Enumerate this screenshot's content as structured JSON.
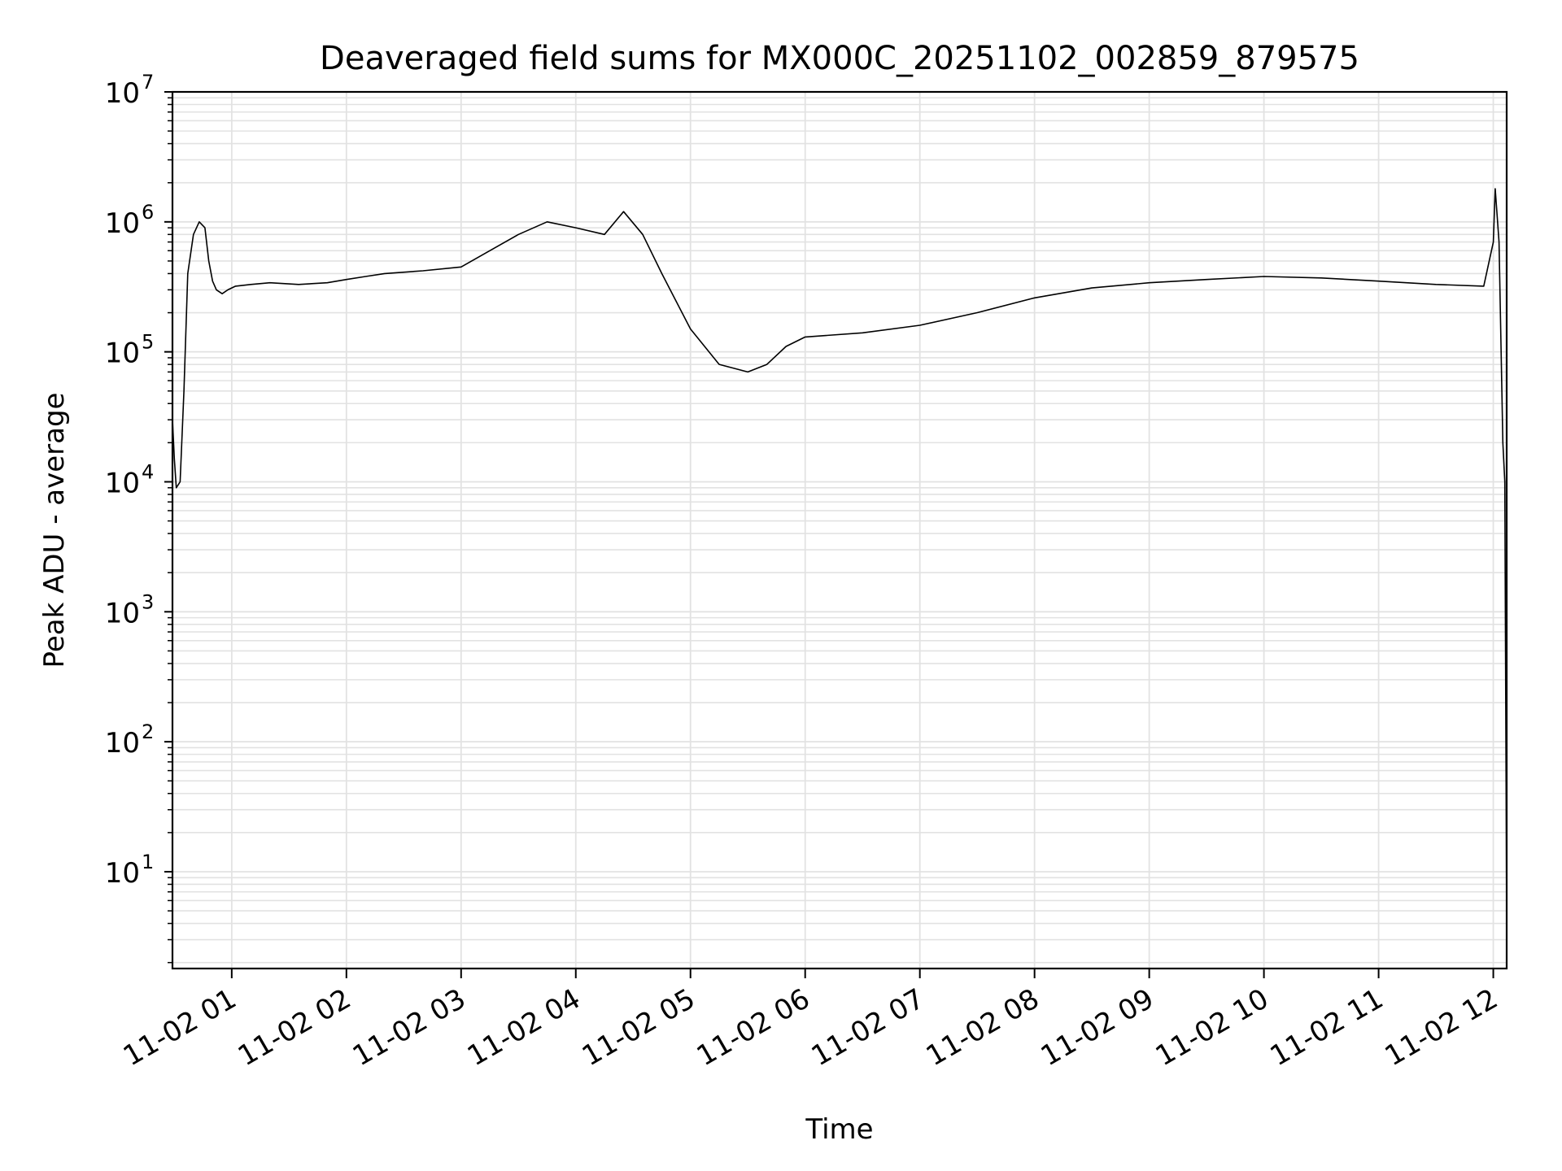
{
  "chart_data": {
    "type": "line",
    "title": "Deaveraged field sums for MX000C_20251102_002859_879575",
    "xlabel": "Time",
    "ylabel": "Peak ADU - average",
    "yscale": "log",
    "ylim": [
      1.8,
      10000000
    ],
    "xlim": [
      "2025-11-02 00:29",
      "2025-11-02 12:07"
    ],
    "grid": true,
    "line_color": "#000000",
    "grid_color": "#e2e2e2",
    "x_ticks": [
      {
        "value": "2025-11-02 01:00",
        "label": "11-02 01"
      },
      {
        "value": "2025-11-02 02:00",
        "label": "11-02 02"
      },
      {
        "value": "2025-11-02 03:00",
        "label": "11-02 03"
      },
      {
        "value": "2025-11-02 04:00",
        "label": "11-02 04"
      },
      {
        "value": "2025-11-02 05:00",
        "label": "11-02 05"
      },
      {
        "value": "2025-11-02 06:00",
        "label": "11-02 06"
      },
      {
        "value": "2025-11-02 07:00",
        "label": "11-02 07"
      },
      {
        "value": "2025-11-02 08:00",
        "label": "11-02 08"
      },
      {
        "value": "2025-11-02 09:00",
        "label": "11-02 09"
      },
      {
        "value": "2025-11-02 10:00",
        "label": "11-02 10"
      },
      {
        "value": "2025-11-02 11:00",
        "label": "11-02 11"
      },
      {
        "value": "2025-11-02 12:00",
        "label": "11-02 12"
      }
    ],
    "y_ticks": [
      {
        "value": 10,
        "base": "10",
        "exp": "1"
      },
      {
        "value": 100,
        "base": "10",
        "exp": "2"
      },
      {
        "value": 1000,
        "base": "10",
        "exp": "3"
      },
      {
        "value": 10000,
        "base": "10",
        "exp": "4"
      },
      {
        "value": 100000,
        "base": "10",
        "exp": "5"
      },
      {
        "value": 1000000,
        "base": "10",
        "exp": "6"
      },
      {
        "value": 10000000,
        "base": "10",
        "exp": "7"
      }
    ],
    "series": [
      {
        "x": [
          "2025-11-02 00:29",
          "2025-11-02 00:30",
          "2025-11-02 00:31",
          "2025-11-02 00:33",
          "2025-11-02 00:35",
          "2025-11-02 00:37",
          "2025-11-02 00:40",
          "2025-11-02 00:43",
          "2025-11-02 00:46",
          "2025-11-02 00:48",
          "2025-11-02 00:50",
          "2025-11-02 00:52",
          "2025-11-02 00:55",
          "2025-11-02 00:58",
          "2025-11-02 01:02",
          "2025-11-02 01:10",
          "2025-11-02 01:20",
          "2025-11-02 01:35",
          "2025-11-02 01:50",
          "2025-11-02 02:00",
          "2025-11-02 02:10",
          "2025-11-02 02:20",
          "2025-11-02 02:40",
          "2025-11-02 03:00",
          "2025-11-02 03:15",
          "2025-11-02 03:30",
          "2025-11-02 03:45",
          "2025-11-02 04:00",
          "2025-11-02 04:15",
          "2025-11-02 04:25",
          "2025-11-02 04:35",
          "2025-11-02 04:45",
          "2025-11-02 05:00",
          "2025-11-02 05:15",
          "2025-11-02 05:30",
          "2025-11-02 05:40",
          "2025-11-02 05:50",
          "2025-11-02 06:00",
          "2025-11-02 06:30",
          "2025-11-02 07:00",
          "2025-11-02 07:30",
          "2025-11-02 08:00",
          "2025-11-02 08:30",
          "2025-11-02 09:00",
          "2025-11-02 09:30",
          "2025-11-02 10:00",
          "2025-11-02 10:30",
          "2025-11-02 11:00",
          "2025-11-02 11:30",
          "2025-11-02 11:55",
          "2025-11-02 12:00",
          "2025-11-02 12:01",
          "2025-11-02 12:03",
          "2025-11-02 12:05",
          "2025-11-02 12:06",
          "2025-11-02 12:07"
        ],
        "y": [
          30000,
          15000,
          9000,
          10000,
          50000,
          400000,
          800000,
          1000000,
          900000,
          500000,
          350000,
          300000,
          280000,
          300000,
          320000,
          330000,
          340000,
          330000,
          340000,
          360000,
          380000,
          400000,
          420000,
          450000,
          600000,
          800000,
          1000000,
          900000,
          800000,
          1200000,
          800000,
          400000,
          150000,
          80000,
          70000,
          80000,
          110000,
          130000,
          140000,
          160000,
          200000,
          260000,
          310000,
          340000,
          360000,
          380000,
          370000,
          350000,
          330000,
          320000,
          700000,
          1800000,
          700000,
          20000,
          10000,
          4
        ]
      }
    ]
  }
}
